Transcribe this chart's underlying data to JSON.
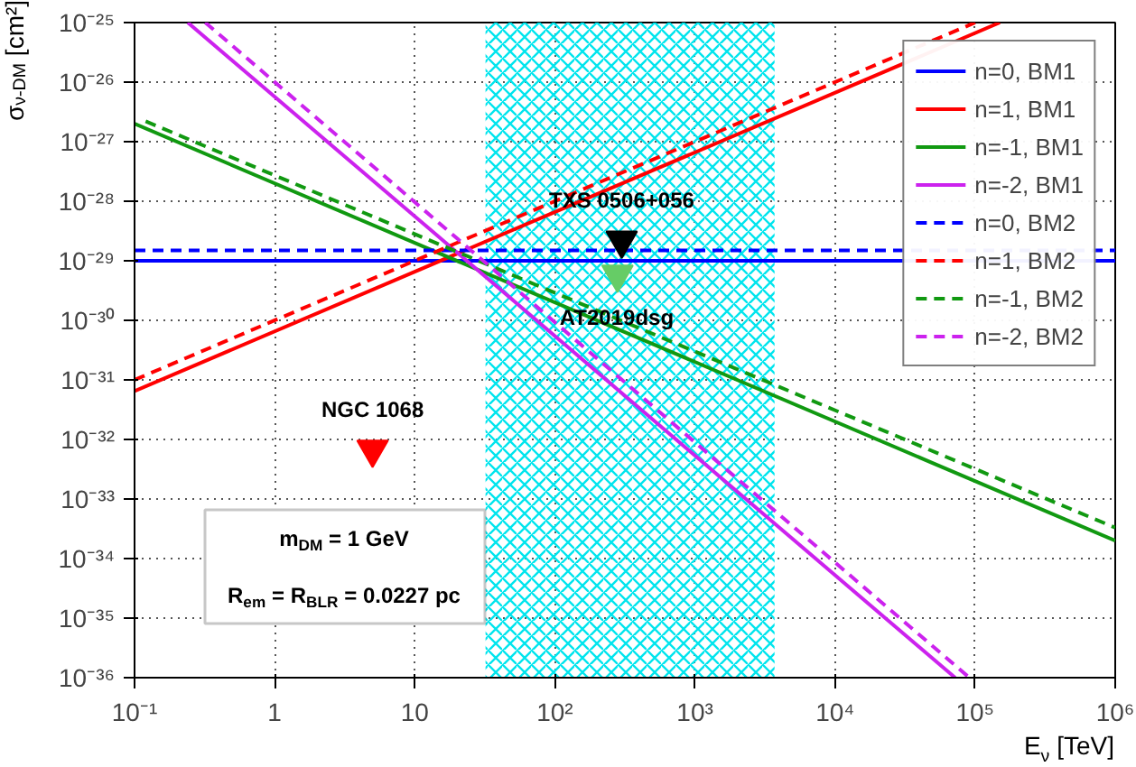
{
  "chart_data": {
    "type": "line",
    "xlabel": "E$_{ν}$ [TeV]",
    "ylabel": "σ$_{ν-DM}$ [cm²]",
    "log": "xy",
    "grid": true,
    "legend": "top right",
    "xlim": [
      0.1,
      1000000
    ],
    "ylim": [
      1e-36,
      1e-25
    ],
    "xticks": [
      {
        "value": 0.1,
        "label": "10⁻¹"
      },
      1,
      10,
      {
        "value": 100,
        "label": "10²"
      },
      {
        "value": 1000,
        "label": "10³"
      },
      {
        "value": 10000,
        "label": "10⁴"
      },
      {
        "value": 100000,
        "label": "10⁵"
      },
      {
        "value": 1000000,
        "label": "10⁶"
      }
    ],
    "yticks": [
      {
        "value": 1e-36,
        "label": "10⁻³⁶"
      },
      {
        "value": 1e-35,
        "label": "10⁻³⁵"
      },
      {
        "value": 1e-34,
        "label": "10⁻³⁴"
      },
      {
        "value": 1e-33,
        "label": "10⁻³³"
      },
      {
        "value": 1e-32,
        "label": "10⁻³²"
      },
      {
        "value": 1e-31,
        "label": "10⁻³¹"
      },
      {
        "value": 1e-30,
        "label": "10⁻³⁰"
      },
      {
        "value": 1e-29,
        "label": "10⁻²⁹"
      },
      {
        "value": 1e-28,
        "label": "10⁻²⁸"
      },
      {
        "value": 1e-27,
        "label": "10⁻²⁷"
      },
      {
        "value": 1e-26,
        "label": "10⁻²⁶"
      },
      {
        "value": 1e-25,
        "label": "10⁻²⁵"
      }
    ],
    "bands": [
      {
        "axis": "x",
        "from": 32,
        "to": 3700,
        "color": "#00e5ee"
      }
    ],
    "series": [
      {
        "name": "n=0, BM1",
        "color": "#0000ff",
        "line_style": "solid",
        "x": [
          0.1,
          1000000
        ],
        "values": [
          1e-29,
          1e-29
        ]
      },
      {
        "name": "n=1, BM1",
        "color": "#ff0000",
        "line_style": "solid",
        "x": [
          0.1,
          150000
        ],
        "values": [
          6.5e-32,
          1e-25
        ]
      },
      {
        "name": "n=-1, BM1",
        "color": "#119911",
        "line_style": "solid",
        "x": [
          0.1,
          1000000
        ],
        "values": [
          2e-27,
          2e-34
        ]
      },
      {
        "name": "n=-2, BM1",
        "color": "#cc22ee",
        "line_style": "solid",
        "x": [
          0.24,
          72000
        ],
        "values": [
          1e-25,
          1e-36
        ]
      },
      {
        "name": "n=0, BM2",
        "color": "#0000ff",
        "line_style": "dashed",
        "x": [
          0.1,
          1000000
        ],
        "values": [
          1.5e-29,
          1.5e-29
        ]
      },
      {
        "name": "n=1, BM2",
        "color": "#ff0000",
        "line_style": "dashed",
        "x": [
          0.1,
          100000
        ],
        "values": [
          1e-31,
          1e-25
        ]
      },
      {
        "name": "n=-1, BM2",
        "color": "#119911",
        "line_style": "dashed",
        "x": [
          0.12,
          1000000
        ],
        "values": [
          2.2e-27,
          3.3e-34
        ]
      },
      {
        "name": "n=-2, BM2",
        "color": "#cc22ee",
        "line_style": "dashed",
        "x": [
          0.32,
          91000
        ],
        "values": [
          1e-25,
          1e-36
        ]
      },
      {
        "type": "scatter",
        "marker": "triangle",
        "color": "#000000",
        "x": [
          300
        ],
        "values": [
          2.2e-29
        ]
      },
      {
        "type": "scatter",
        "marker": "triangle",
        "color": "#66cc66",
        "x": [
          280
        ],
        "values": [
          5.9e-30
        ]
      },
      {
        "type": "scatter",
        "marker": "triangle",
        "color": "#ff0000",
        "x": [
          5
        ],
        "values": [
          6.8e-33
        ]
      }
    ],
    "annotations": [
      {
        "text": "TXS 0506+056",
        "x": 300,
        "y": 2.2e-29
      },
      {
        "text": "AT2019dsg",
        "x": 280,
        "y": 5.9e-30
      },
      {
        "text": "NGC 1068",
        "x": 5,
        "y": 6.8e-33
      },
      "m$_{DM}$ = 1 GeV",
      "R$_{em}$ = R$_{BLR}$ = 0.0227 pc"
    ]
  }
}
